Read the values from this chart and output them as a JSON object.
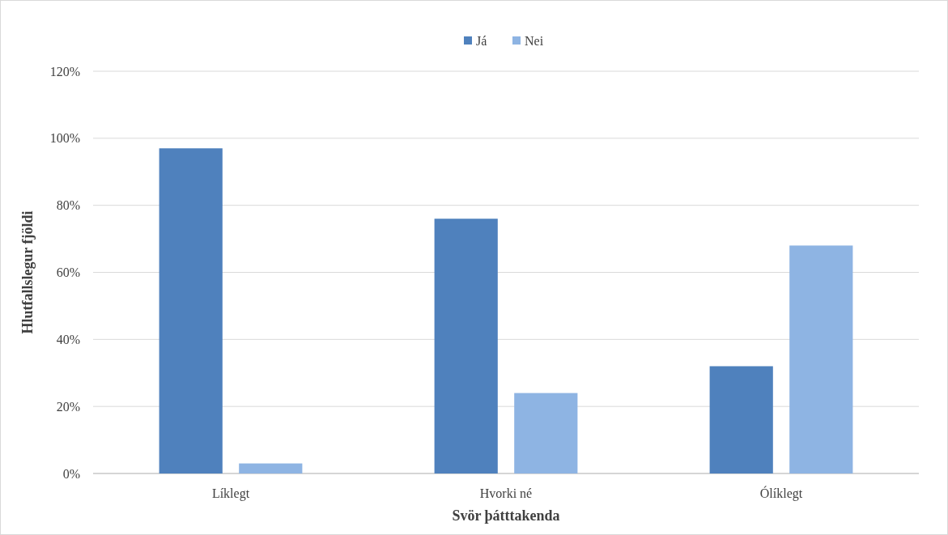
{
  "chart_data": {
    "type": "bar",
    "xlabel": "Svör þátttakenda",
    "ylabel": "Hlutfallslegur fjöldi",
    "categories": [
      "Líklegt",
      "Hvorki né",
      "Ólíklegt"
    ],
    "series": [
      {
        "name": "Já",
        "color": "#4f81bd",
        "values": [
          97,
          76,
          32
        ]
      },
      {
        "name": "Nei",
        "color": "#8eb4e3",
        "values": [
          3,
          24,
          68
        ]
      }
    ],
    "ylim": [
      0,
      120
    ],
    "yticks": [
      {
        "value": 0,
        "label": "0%"
      },
      {
        "value": 20,
        "label": "20%"
      },
      {
        "value": 40,
        "label": "40%"
      },
      {
        "value": 60,
        "label": "60%"
      },
      {
        "value": 80,
        "label": "80%"
      },
      {
        "value": 100,
        "label": "100%"
      },
      {
        "value": 120,
        "label": "120%"
      }
    ],
    "grid": "y",
    "legend": "top"
  }
}
